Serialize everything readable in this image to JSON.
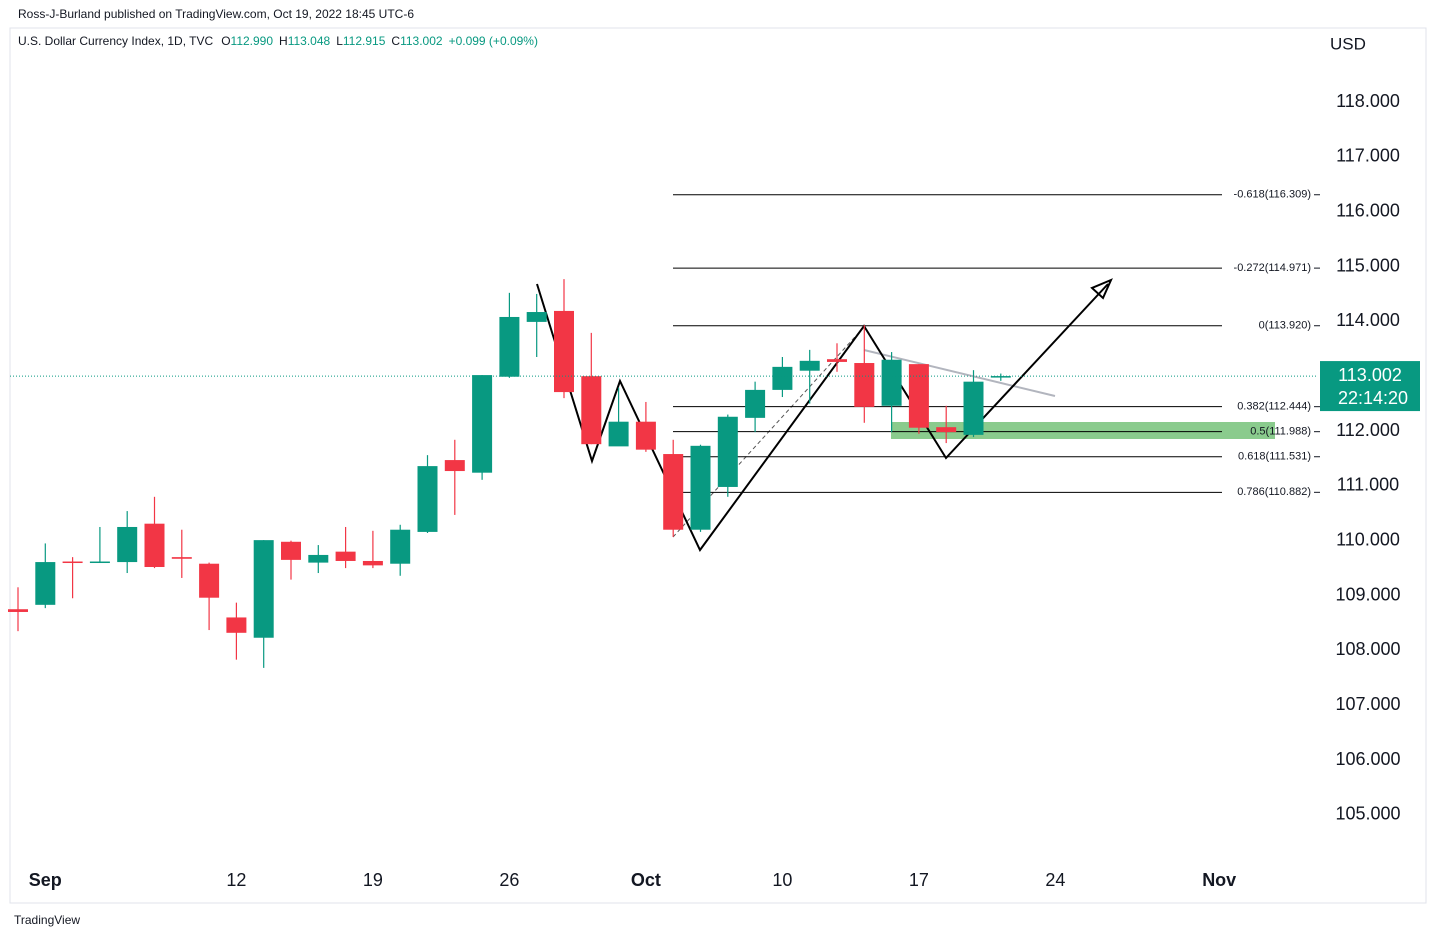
{
  "header": {
    "published": "Ross-J-Burland published on TradingView.com, Oct 19, 2022 18:45 UTC-6",
    "symbol": "U.S. Dollar Currency Index, 1D, TVC",
    "ohlc": [
      {
        "label": "O",
        "value": "112.990"
      },
      {
        "label": "H",
        "value": "113.048"
      },
      {
        "label": "L",
        "value": "112.915"
      },
      {
        "label": "C",
        "value": "113.002"
      }
    ],
    "change": "+0.099 (+0.09%)",
    "brand": "TradingView"
  },
  "chart_data": {
    "type": "candlestick",
    "axis_unit": "USD",
    "up_color": "#089981",
    "down_color": "#f23645",
    "categories": [
      null,
      "Sep",
      null,
      null,
      null,
      null,
      null,
      null,
      "12",
      null,
      null,
      null,
      null,
      "19",
      null,
      null,
      null,
      null,
      "26",
      null,
      null,
      null,
      null,
      "Oct",
      null,
      null,
      null,
      null,
      "10",
      null,
      null,
      null,
      null,
      "17",
      null,
      null,
      null,
      null,
      "24",
      null,
      null,
      null,
      null,
      null,
      "Nov"
    ],
    "open": [
      108.75,
      108.83,
      109.62,
      109.6,
      109.61,
      110.31,
      109.7,
      109.58,
      108.6,
      108.23,
      109.98,
      109.6,
      109.8,
      109.63,
      109.58,
      110.16,
      111.47,
      111.24,
      112.99,
      113.99,
      114.19,
      113.0,
      111.72,
      112.17,
      111.58,
      110.2,
      110.98,
      112.24,
      112.75,
      113.1,
      113.31,
      113.24,
      112.46,
      113.22,
      112.07,
      111.93,
      112.99,
      null,
      null,
      null,
      null,
      null,
      null,
      null,
      null
    ],
    "high": [
      109.15,
      109.95,
      109.7,
      110.25,
      110.54,
      110.8,
      110.2,
      109.6,
      108.87,
      110.01,
      110.0,
      109.92,
      110.25,
      110.18,
      110.29,
      111.56,
      111.84,
      113.02,
      114.52,
      114.5,
      114.77,
      113.79,
      112.79,
      112.53,
      111.84,
      111.75,
      112.3,
      112.9,
      113.35,
      113.48,
      113.6,
      113.93,
      113.44,
      113.22,
      112.46,
      113.11,
      113.048,
      null,
      null,
      null,
      null,
      null,
      null,
      null,
      null
    ],
    "low": [
      108.35,
      108.77,
      108.95,
      109.6,
      109.41,
      109.5,
      109.32,
      108.37,
      107.83,
      107.68,
      109.29,
      109.41,
      109.5,
      109.5,
      109.36,
      110.14,
      110.47,
      111.11,
      112.97,
      113.35,
      112.6,
      111.76,
      111.73,
      111.62,
      110.07,
      110.16,
      110.8,
      111.98,
      112.62,
      112.5,
      113.08,
      112.15,
      111.98,
      111.95,
      111.78,
      111.89,
      112.915,
      null,
      null,
      null,
      null,
      null,
      null,
      null,
      null
    ],
    "close": [
      108.7,
      109.61,
      109.6,
      109.62,
      110.25,
      109.52,
      109.67,
      108.96,
      108.32,
      110.01,
      109.65,
      109.74,
      109.63,
      109.55,
      110.2,
      111.36,
      111.27,
      113.02,
      114.08,
      114.17,
      112.71,
      111.76,
      112.17,
      111.66,
      110.2,
      111.73,
      112.26,
      112.75,
      113.17,
      113.28,
      113.26,
      112.44,
      113.3,
      112.06,
      111.98,
      112.9,
      113.002,
      null,
      null,
      null,
      null,
      null,
      null,
      null,
      null
    ],
    "countdown": "22:14:20",
    "ylim": [
      104.14,
      119.35
    ],
    "yticks": [
      {
        "value": 105,
        "label": "105.000"
      },
      {
        "value": 106,
        "label": "106.000"
      },
      {
        "value": 107,
        "label": "107.000"
      },
      {
        "value": 108,
        "label": "108.000"
      },
      {
        "value": 109,
        "label": "109.000"
      },
      {
        "value": 110,
        "label": "110.000"
      },
      {
        "value": 111,
        "label": "111.000"
      },
      {
        "value": 112,
        "label": "112.000"
      },
      {
        "value": 113,
        "label": "113.000"
      },
      {
        "value": 114,
        "label": "114.000"
      },
      {
        "value": 115,
        "label": "115.000"
      },
      {
        "value": 116,
        "label": "116.000"
      },
      {
        "value": 117,
        "label": "117.000"
      },
      {
        "value": 118,
        "label": "118.000"
      }
    ],
    "fib_levels": [
      {
        "label": "-0.618(116.309)",
        "value": 116.309
      },
      {
        "label": "-0.272(114.971)",
        "value": 114.971
      },
      {
        "label": "0(113.920)",
        "value": 113.92
      },
      {
        "label": "0.382(112.444)",
        "value": 112.444
      },
      {
        "label": "0.5(111.988)",
        "value": 111.988
      },
      {
        "label": "0.618(111.531)",
        "value": 111.531
      },
      {
        "label": "0.786(110.882)",
        "value": 110.882
      }
    ]
  }
}
